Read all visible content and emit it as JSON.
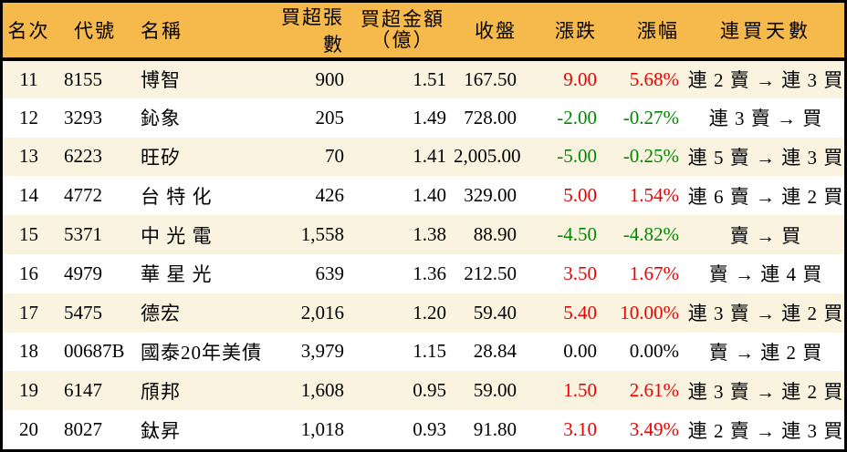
{
  "colors": {
    "header_bg": "#F6B94B",
    "stripe_bg": "#FAF3E0",
    "up_red": "#EE0000",
    "down_green": "#008800",
    "flat_black": "#000000",
    "border_black": "#000000"
  },
  "table": {
    "headers": {
      "rank": "名次",
      "code": "代號",
      "name": "名稱",
      "volume": "買超張數",
      "amount_line1": "買超金額",
      "amount_line2": "（億）",
      "close": "收盤",
      "change": "漲跌",
      "change_pct": "漲幅",
      "streak": "連買天數"
    },
    "rows": [
      {
        "rank": "11",
        "code": "8155",
        "name": "博智",
        "volume": "900",
        "amount": "1.51",
        "close": "167.50",
        "change": "9.00",
        "change_pct": "5.68%",
        "streak": "連 2 賣 → 連 3 買",
        "trend": "up"
      },
      {
        "rank": "12",
        "code": "3293",
        "name": "鈊象",
        "volume": "205",
        "amount": "1.49",
        "close": "728.00",
        "change": "-2.00",
        "change_pct": "-0.27%",
        "streak": "連 3 賣 → 買",
        "trend": "down"
      },
      {
        "rank": "13",
        "code": "6223",
        "name": "旺矽",
        "volume": "70",
        "amount": "1.41",
        "close": "2,005.00",
        "change": "-5.00",
        "change_pct": "-0.25%",
        "streak": "連 5 賣 → 連 3 買",
        "trend": "down"
      },
      {
        "rank": "14",
        "code": "4772",
        "name": "台 特 化",
        "volume": "426",
        "amount": "1.40",
        "close": "329.00",
        "change": "5.00",
        "change_pct": "1.54%",
        "streak": "連 6 賣 → 連 2 買",
        "trend": "up"
      },
      {
        "rank": "15",
        "code": "5371",
        "name": "中 光 電",
        "volume": "1,558",
        "amount": "1.38",
        "close": "88.90",
        "change": "-4.50",
        "change_pct": "-4.82%",
        "streak": "賣 → 買",
        "trend": "down"
      },
      {
        "rank": "16",
        "code": "4979",
        "name": "華 星 光",
        "volume": "639",
        "amount": "1.36",
        "close": "212.50",
        "change": "3.50",
        "change_pct": "1.67%",
        "streak": "賣 → 連 4 買",
        "trend": "up"
      },
      {
        "rank": "17",
        "code": "5475",
        "name": "德宏",
        "volume": "2,016",
        "amount": "1.20",
        "close": "59.40",
        "change": "5.40",
        "change_pct": "10.00%",
        "streak": "連 3 賣 → 連 2 買",
        "trend": "up"
      },
      {
        "rank": "18",
        "code": "00687B",
        "name": "國泰20年美債",
        "volume": "3,979",
        "amount": "1.15",
        "close": "28.84",
        "change": "0.00",
        "change_pct": "0.00%",
        "streak": "賣 → 連 2 買",
        "trend": "flat"
      },
      {
        "rank": "19",
        "code": "6147",
        "name": "頎邦",
        "volume": "1,608",
        "amount": "0.95",
        "close": "59.00",
        "change": "1.50",
        "change_pct": "2.61%",
        "streak": "連 3 賣 → 連 2 買",
        "trend": "up"
      },
      {
        "rank": "20",
        "code": "8027",
        "name": "鈦昇",
        "volume": "1,018",
        "amount": "0.93",
        "close": "91.80",
        "change": "3.10",
        "change_pct": "3.49%",
        "streak": "連 2 賣 → 連 3 買",
        "trend": "up"
      }
    ]
  }
}
